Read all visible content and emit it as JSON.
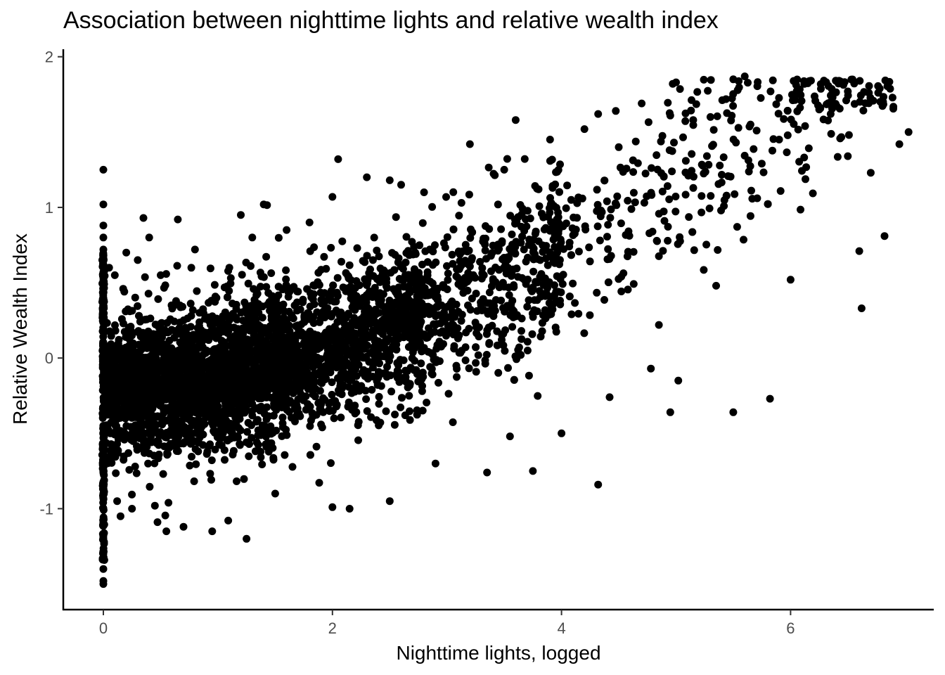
{
  "chart_data": {
    "type": "scatter",
    "title": "Association between nighttime lights and relative wealth index",
    "xlabel": "Nighttime lights, logged",
    "ylabel": "Relative Wealth Index",
    "xlim": [
      -0.35,
      7.25
    ],
    "ylim": [
      -1.67,
      2.05
    ],
    "xticks": [
      0,
      2,
      4,
      6
    ],
    "yticks": [
      -1,
      0,
      1,
      2
    ],
    "xtick_labels": [
      "0",
      "2",
      "4",
      "6"
    ],
    "ytick_labels": [
      "-1",
      "0",
      "1",
      "2"
    ],
    "grid": false,
    "legend": "none",
    "point_color": "#000000",
    "series": [
      {
        "points": [
          [
            0.0,
            1.25
          ],
          [
            0.0,
            1.02
          ],
          [
            0.0,
            0.88
          ],
          [
            0.0,
            0.8
          ],
          [
            0.0,
            0.72
          ],
          [
            0.0,
            0.62
          ],
          [
            0.0,
            0.5
          ],
          [
            0.0,
            0.4
          ],
          [
            0.0,
            -0.9
          ],
          [
            0.0,
            -1.0
          ],
          [
            0.0,
            -1.1
          ],
          [
            0.0,
            -1.2
          ],
          [
            0.0,
            -1.3
          ],
          [
            0.0,
            -1.4
          ],
          [
            0.0,
            -1.48
          ],
          [
            0.0,
            -1.5
          ],
          [
            0.05,
            0.6
          ],
          [
            0.1,
            0.55
          ],
          [
            0.12,
            -0.95
          ],
          [
            0.15,
            -1.05
          ],
          [
            0.2,
            0.7
          ],
          [
            0.25,
            -1.0
          ],
          [
            0.3,
            0.65
          ],
          [
            0.35,
            0.93
          ],
          [
            0.4,
            0.8
          ],
          [
            0.45,
            -0.98
          ],
          [
            0.5,
            0.55
          ],
          [
            0.55,
            -1.15
          ],
          [
            0.65,
            0.92
          ],
          [
            0.7,
            -1.12
          ],
          [
            0.8,
            0.72
          ],
          [
            0.95,
            -1.15
          ],
          [
            1.1,
            0.6
          ],
          [
            1.2,
            0.95
          ],
          [
            1.25,
            -1.2
          ],
          [
            1.3,
            0.8
          ],
          [
            1.4,
            1.02
          ],
          [
            1.5,
            -0.9
          ],
          [
            1.6,
            0.85
          ],
          [
            1.8,
            0.9
          ],
          [
            2.0,
            1.07
          ],
          [
            2.05,
            1.32
          ],
          [
            2.0,
            -0.99
          ],
          [
            2.15,
            -1.0
          ],
          [
            2.3,
            1.2
          ],
          [
            2.5,
            1.18
          ],
          [
            2.6,
            1.15
          ],
          [
            2.5,
            -0.95
          ],
          [
            2.8,
            1.1
          ],
          [
            2.9,
            -0.7
          ],
          [
            3.2,
            1.42
          ],
          [
            3.35,
            -0.76
          ],
          [
            3.5,
            1.25
          ],
          [
            3.55,
            -0.52
          ],
          [
            3.6,
            1.58
          ],
          [
            3.75,
            -0.75
          ],
          [
            3.9,
            1.45
          ],
          [
            4.0,
            -0.5
          ],
          [
            4.2,
            1.52
          ],
          [
            4.32,
            1.62
          ],
          [
            4.32,
            -0.84
          ],
          [
            4.42,
            -0.26
          ],
          [
            4.5,
            1.4
          ],
          [
            4.7,
            1.69
          ],
          [
            4.78,
            -0.07
          ],
          [
            4.85,
            0.22
          ],
          [
            4.95,
            -0.36
          ],
          [
            4.95,
            1.61
          ],
          [
            5.0,
            1.83
          ],
          [
            5.02,
            -0.15
          ],
          [
            5.15,
            1.58
          ],
          [
            5.3,
            1.6
          ],
          [
            5.35,
            0.48
          ],
          [
            5.5,
            1.85
          ],
          [
            5.5,
            -0.36
          ],
          [
            5.6,
            1.87
          ],
          [
            5.65,
            1.55
          ],
          [
            5.82,
            -0.27
          ],
          [
            5.9,
            1.45
          ],
          [
            6.0,
            0.52
          ],
          [
            6.12,
            1.82
          ],
          [
            6.25,
            1.65
          ],
          [
            6.35,
            1.62
          ],
          [
            6.5,
            1.77
          ],
          [
            6.5,
            1.34
          ],
          [
            6.6,
            0.71
          ],
          [
            6.62,
            0.33
          ],
          [
            6.7,
            1.23
          ],
          [
            6.82,
            0.81
          ],
          [
            6.95,
            1.42
          ],
          [
            7.03,
            1.5
          ]
        ]
      }
    ]
  }
}
